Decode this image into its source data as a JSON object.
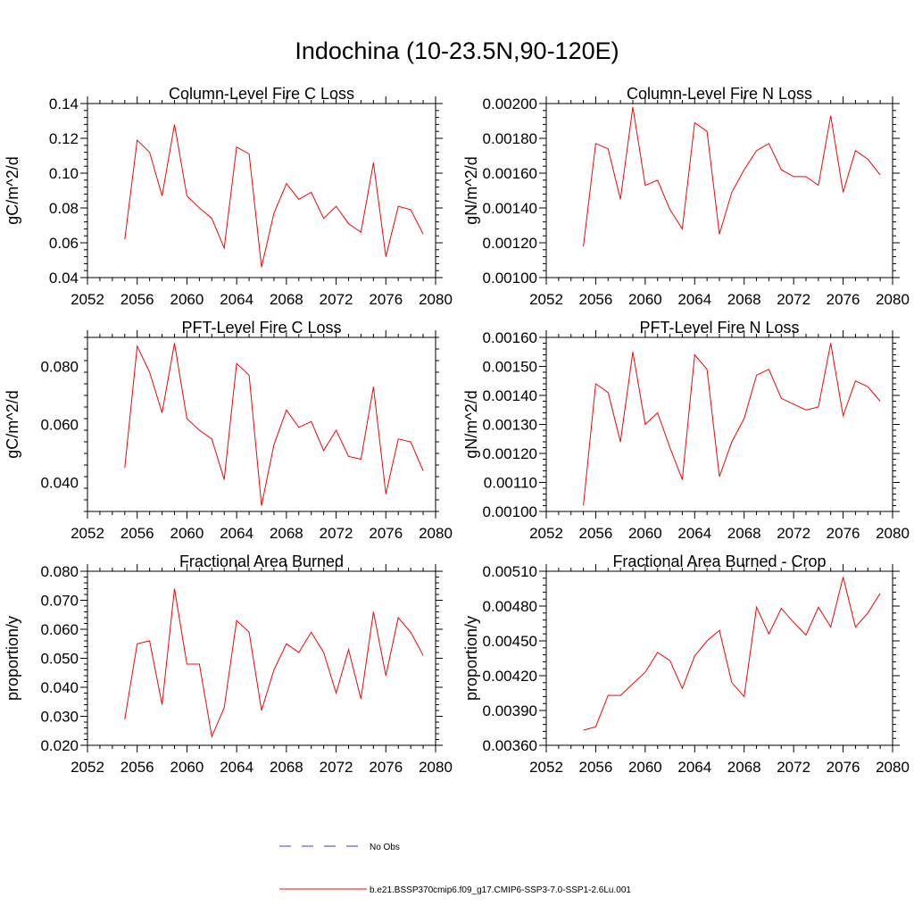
{
  "figure": {
    "title": "Indochina (10-23.5N,90-120E)",
    "legend": [
      {
        "label": "No Obs",
        "color": "#3b3bd6",
        "style": "dashed"
      },
      {
        "label": "b.e21.BSSP370cmip6.f09_g17.CMIP6-SSP3-7.0-SSP1-2.6Lu.001",
        "color": "#ff0000",
        "style": "solid"
      }
    ]
  },
  "chart_data": [
    {
      "type": "line",
      "title": "Column-Level Fire C Loss",
      "ylabel": "gC/m^2/d",
      "xlim": [
        2052,
        2080
      ],
      "ylim": [
        0.04,
        0.14
      ],
      "xticks": [
        "2052",
        "2056",
        "2060",
        "2064",
        "2068",
        "2072",
        "2076",
        "2080"
      ],
      "yticks": [
        "0.04",
        "0.06",
        "0.08",
        "0.10",
        "0.12",
        "0.14"
      ],
      "x": [
        2055,
        2056,
        2057,
        2058,
        2059,
        2060,
        2061,
        2062,
        2063,
        2064,
        2065,
        2066,
        2067,
        2068,
        2069,
        2070,
        2071,
        2072,
        2073,
        2074,
        2075,
        2076,
        2077,
        2078,
        2079
      ],
      "series": [
        {
          "color": "#ff0000",
          "values": [
            0.062,
            0.119,
            0.112,
            0.087,
            0.128,
            0.087,
            0.08,
            0.074,
            0.057,
            0.115,
            0.111,
            0.046,
            0.077,
            0.094,
            0.085,
            0.089,
            0.074,
            0.081,
            0.071,
            0.066,
            0.106,
            0.052,
            0.081,
            0.079,
            0.065
          ]
        }
      ]
    },
    {
      "type": "line",
      "title": "Column-Level Fire N Loss",
      "ylabel": "gN/m^2/d",
      "xlim": [
        2052,
        2080
      ],
      "ylim": [
        0.001,
        0.002
      ],
      "xticks": [
        "2052",
        "2056",
        "2060",
        "2064",
        "2068",
        "2072",
        "2076",
        "2080"
      ],
      "yticks": [
        "0.00100",
        "0.00120",
        "0.00140",
        "0.00160",
        "0.00180",
        "0.00200"
      ],
      "x": [
        2055,
        2056,
        2057,
        2058,
        2059,
        2060,
        2061,
        2062,
        2063,
        2064,
        2065,
        2066,
        2067,
        2068,
        2069,
        2070,
        2071,
        2072,
        2073,
        2074,
        2075,
        2076,
        2077,
        2078,
        2079
      ],
      "series": [
        {
          "color": "#ff0000",
          "values": [
            0.00118,
            0.00177,
            0.00174,
            0.00145,
            0.00198,
            0.00153,
            0.00156,
            0.00139,
            0.00128,
            0.00189,
            0.00184,
            0.00125,
            0.00149,
            0.00162,
            0.00173,
            0.00177,
            0.00162,
            0.00158,
            0.00158,
            0.00153,
            0.00193,
            0.00149,
            0.00173,
            0.00168,
            0.00159
          ]
        }
      ]
    },
    {
      "type": "line",
      "title": "PFT-Level Fire C Loss",
      "ylabel": "gC/m^2/d",
      "xlim": [
        2052,
        2080
      ],
      "ylim": [
        0.03,
        0.09
      ],
      "xticks": [
        "2052",
        "2056",
        "2060",
        "2064",
        "2068",
        "2072",
        "2076",
        "2080"
      ],
      "yticks": [
        "0.040",
        "0.060",
        "0.080"
      ],
      "ytick_values": [
        0.04,
        0.06,
        0.08
      ],
      "x": [
        2055,
        2056,
        2057,
        2058,
        2059,
        2060,
        2061,
        2062,
        2063,
        2064,
        2065,
        2066,
        2067,
        2068,
        2069,
        2070,
        2071,
        2072,
        2073,
        2074,
        2075,
        2076,
        2077,
        2078,
        2079
      ],
      "series": [
        {
          "color": "#ff0000",
          "values": [
            0.045,
            0.087,
            0.078,
            0.064,
            0.088,
            0.062,
            0.058,
            0.055,
            0.041,
            0.081,
            0.077,
            0.032,
            0.053,
            0.065,
            0.059,
            0.061,
            0.051,
            0.058,
            0.049,
            0.048,
            0.073,
            0.036,
            0.055,
            0.054,
            0.044
          ]
        }
      ]
    },
    {
      "type": "line",
      "title": "PFT-Level Fire N Loss",
      "ylabel": "gN/m^2/d",
      "xlim": [
        2052,
        2080
      ],
      "ylim": [
        0.001,
        0.0016
      ],
      "xticks": [
        "2052",
        "2056",
        "2060",
        "2064",
        "2068",
        "2072",
        "2076",
        "2080"
      ],
      "yticks": [
        "0.00100",
        "0.00110",
        "0.00120",
        "0.00130",
        "0.00140",
        "0.00150",
        "0.00160"
      ],
      "x": [
        2055,
        2056,
        2057,
        2058,
        2059,
        2060,
        2061,
        2062,
        2063,
        2064,
        2065,
        2066,
        2067,
        2068,
        2069,
        2070,
        2071,
        2072,
        2073,
        2074,
        2075,
        2076,
        2077,
        2078,
        2079
      ],
      "series": [
        {
          "color": "#ff0000",
          "values": [
            0.00102,
            0.00144,
            0.00141,
            0.00124,
            0.00155,
            0.0013,
            0.00134,
            0.00122,
            0.00111,
            0.00154,
            0.00149,
            0.00112,
            0.00124,
            0.00132,
            0.00147,
            0.00149,
            0.00139,
            0.00137,
            0.00135,
            0.00136,
            0.00158,
            0.00133,
            0.00145,
            0.00143,
            0.00138
          ]
        }
      ]
    },
    {
      "type": "line",
      "title": "Fractional Area Burned",
      "ylabel": "proportion/y",
      "xlim": [
        2052,
        2080
      ],
      "ylim": [
        0.02,
        0.08
      ],
      "xticks": [
        "2052",
        "2056",
        "2060",
        "2064",
        "2068",
        "2072",
        "2076",
        "2080"
      ],
      "yticks": [
        "0.020",
        "0.030",
        "0.040",
        "0.050",
        "0.060",
        "0.070",
        "0.080"
      ],
      "x": [
        2055,
        2056,
        2057,
        2058,
        2059,
        2060,
        2061,
        2062,
        2063,
        2064,
        2065,
        2066,
        2067,
        2068,
        2069,
        2070,
        2071,
        2072,
        2073,
        2074,
        2075,
        2076,
        2077,
        2078,
        2079
      ],
      "series": [
        {
          "color": "#ff0000",
          "values": [
            0.029,
            0.055,
            0.056,
            0.034,
            0.074,
            0.048,
            0.048,
            0.023,
            0.033,
            0.063,
            0.059,
            0.032,
            0.046,
            0.055,
            0.052,
            0.059,
            0.052,
            0.038,
            0.053,
            0.036,
            0.066,
            0.044,
            0.064,
            0.059,
            0.051
          ]
        }
      ]
    },
    {
      "type": "line",
      "title": "Fractional Area Burned - Crop",
      "ylabel": "proportion/y",
      "xlim": [
        2052,
        2080
      ],
      "ylim": [
        0.0036,
        0.0051
      ],
      "xticks": [
        "2052",
        "2056",
        "2060",
        "2064",
        "2068",
        "2072",
        "2076",
        "2080"
      ],
      "yticks": [
        "0.00360",
        "0.00390",
        "0.00420",
        "0.00450",
        "0.00480",
        "0.00510"
      ],
      "x": [
        2055,
        2056,
        2057,
        2058,
        2059,
        2060,
        2061,
        2062,
        2063,
        2064,
        2065,
        2066,
        2067,
        2068,
        2069,
        2070,
        2071,
        2072,
        2073,
        2074,
        2075,
        2076,
        2077,
        2078,
        2079
      ],
      "series": [
        {
          "color": "#ff0000",
          "values": [
            0.00373,
            0.00376,
            0.00403,
            0.00403,
            0.00413,
            0.00423,
            0.0044,
            0.00433,
            0.00409,
            0.00437,
            0.0045,
            0.00459,
            0.00414,
            0.00402,
            0.00479,
            0.00456,
            0.00478,
            0.00466,
            0.00455,
            0.00479,
            0.00462,
            0.00505,
            0.00462,
            0.00474,
            0.00491
          ]
        }
      ]
    }
  ]
}
